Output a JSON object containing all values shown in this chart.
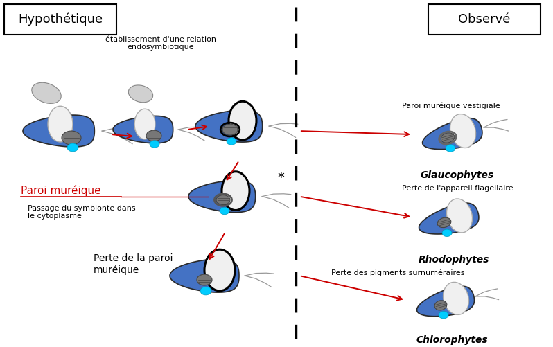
{
  "title_left": "Hypothétique",
  "title_right": "Observé",
  "bg_color": "#ffffff",
  "cell_body_color": "#4472C4",
  "cell_body_edge": "#2a2a2a",
  "nucleus_fill": "#f0f0f0",
  "nucleus_edge": "#aaaaaa",
  "chloro_fill": "#777777",
  "chloro_edge": "#444444",
  "cyan_color": "#00CCFF",
  "arrow_color": "#cc0000",
  "dashed_line_x": 0.535,
  "ann_etablissement": "établissement d'une relation\nendosymbiotique",
  "ann_paroi": "Paroi muréique",
  "ann_passage": "Passage du symbionte dans\nle cytoplasme",
  "ann_perte_paroi": "Perte de la paroi\nmuréique",
  "ann_paroi_vestigiale": "Paroi muréique vestigiale",
  "ann_glaucophytes": "Glaucophytes",
  "ann_perte_flagellaire": "Perte de l'appareil flagellaire",
  "ann_rhodophytes": "Rhodophytes",
  "ann_perte_pigments": "Perte des pigments surnuméraires",
  "ann_chlorophytes": "Chlorophytes"
}
